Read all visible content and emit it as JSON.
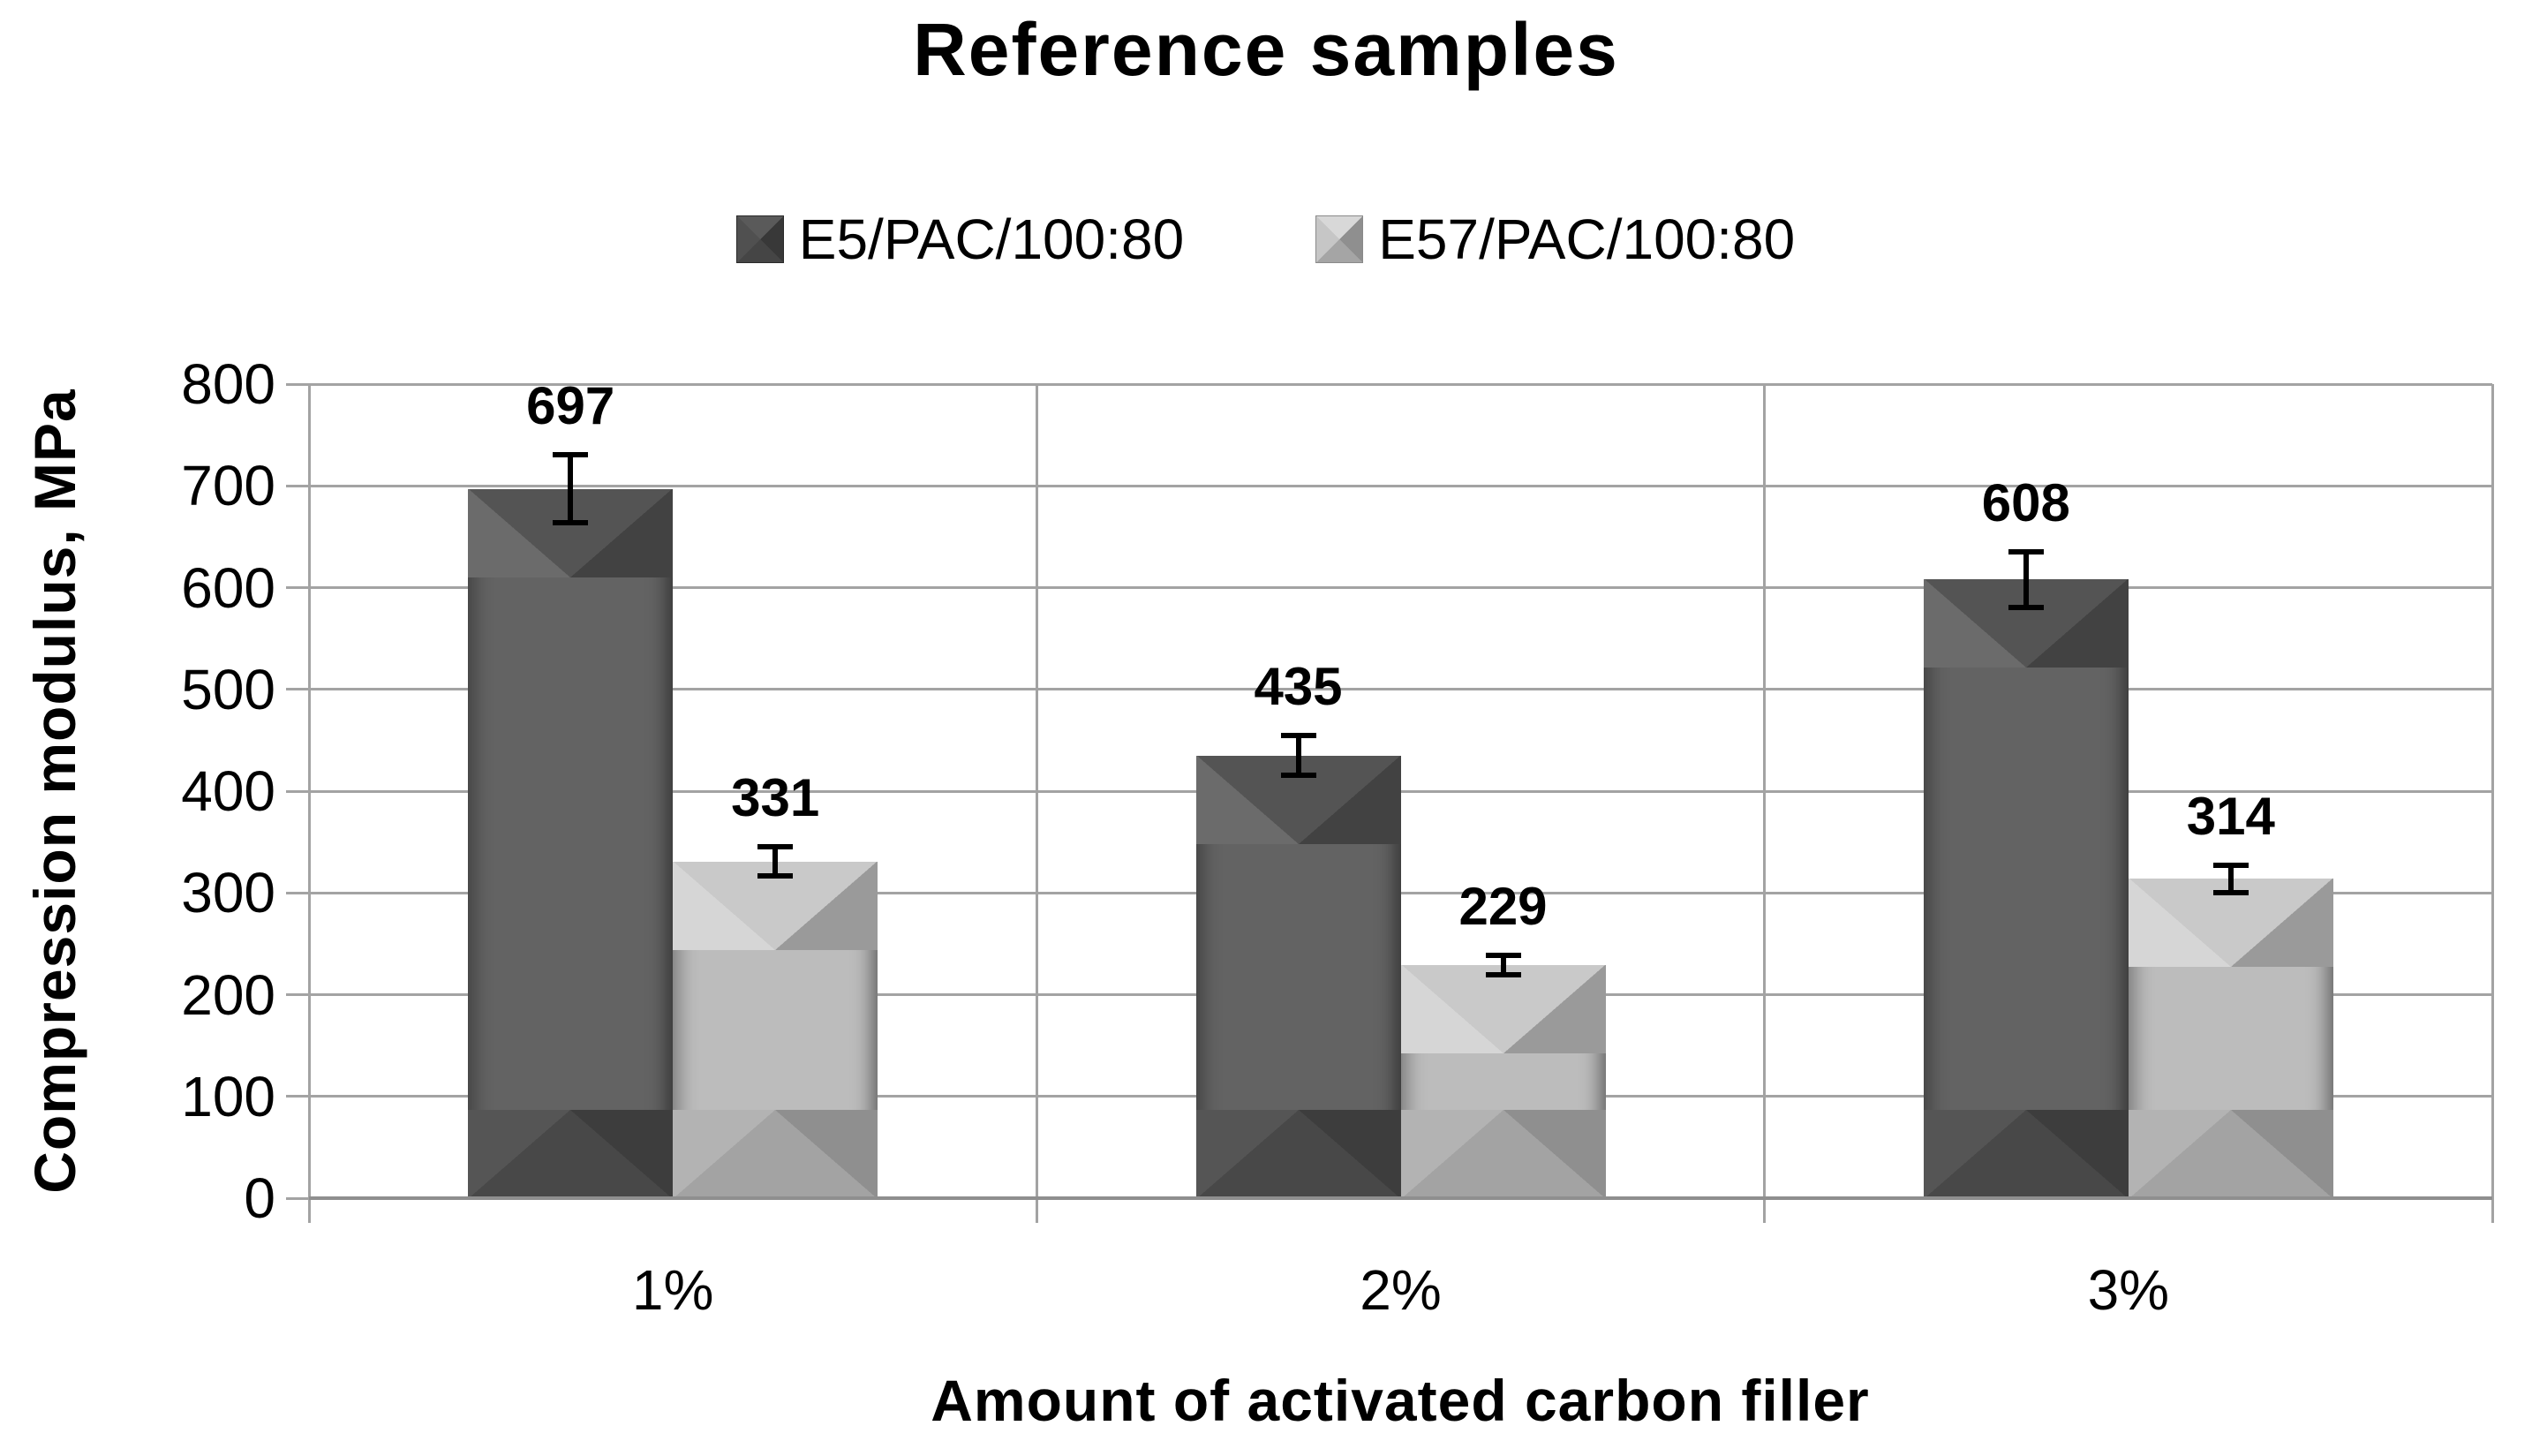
{
  "chart_data": {
    "type": "bar",
    "title": "Reference samples",
    "categories": [
      "1%",
      "2%",
      "3%"
    ],
    "series": [
      {
        "name": "E5/PAC/100:80",
        "values": [
          697,
          435,
          608
        ],
        "errors": [
          36,
          22,
          30
        ],
        "color": "#636363"
      },
      {
        "name": "E57/PAC/100:80",
        "values": [
          331,
          229,
          314
        ],
        "errors": [
          17,
          12,
          16
        ],
        "color": "#bcbcbc"
      }
    ],
    "xlabel": "Amount of activated carbon filler",
    "ylabel": "Compression modulus, MPa",
    "ylim": [
      0,
      800
    ],
    "ytick_step": 100,
    "yticks": [
      0,
      100,
      200,
      300,
      400,
      500,
      600,
      700,
      800
    ],
    "grid": true,
    "legend_position": "top",
    "error_bars": true,
    "data_labels": true
  },
  "colors": {
    "background": "#ffffff",
    "text": "#000000",
    "gridline": "#a3a3a3",
    "axis_line": "#8f8f8f",
    "error_bar": "#000000",
    "series1": "#636363",
    "series2": "#bcbcbc"
  }
}
